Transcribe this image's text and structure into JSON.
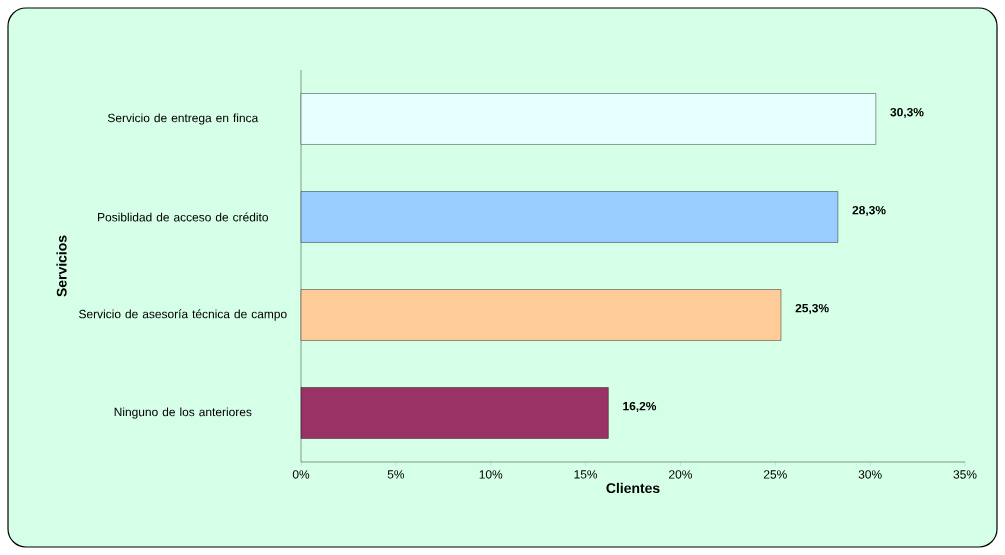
{
  "chart_data": {
    "type": "bar",
    "orientation": "horizontal",
    "categories": [
      "Servicio de entrega en finca",
      "Posiblidad de acceso de crédito",
      "Servicio de asesoría técnica de campo",
      "Ninguno de los anteriores"
    ],
    "values": [
      30.3,
      28.3,
      25.3,
      16.2
    ],
    "colors": [
      "#e6ffff",
      "#99ccff",
      "#ffcc99",
      "#993366"
    ],
    "value_labels": [
      "30,3%",
      "28,3%",
      "25,3%",
      "16,2%"
    ],
    "xlabel": "Clientes",
    "ylabel": "Servicios",
    "xlim": [
      0,
      35
    ],
    "xticks": [
      {
        "value": 0,
        "label": "0%"
      },
      {
        "value": 5,
        "label": "5%"
      },
      {
        "value": 10,
        "label": "10%"
      },
      {
        "value": 15,
        "label": "15%"
      },
      {
        "value": 20,
        "label": "20%"
      },
      {
        "value": 25,
        "label": "25%"
      },
      {
        "value": 30,
        "label": "30%"
      },
      {
        "value": 35,
        "label": "35%"
      }
    ]
  }
}
